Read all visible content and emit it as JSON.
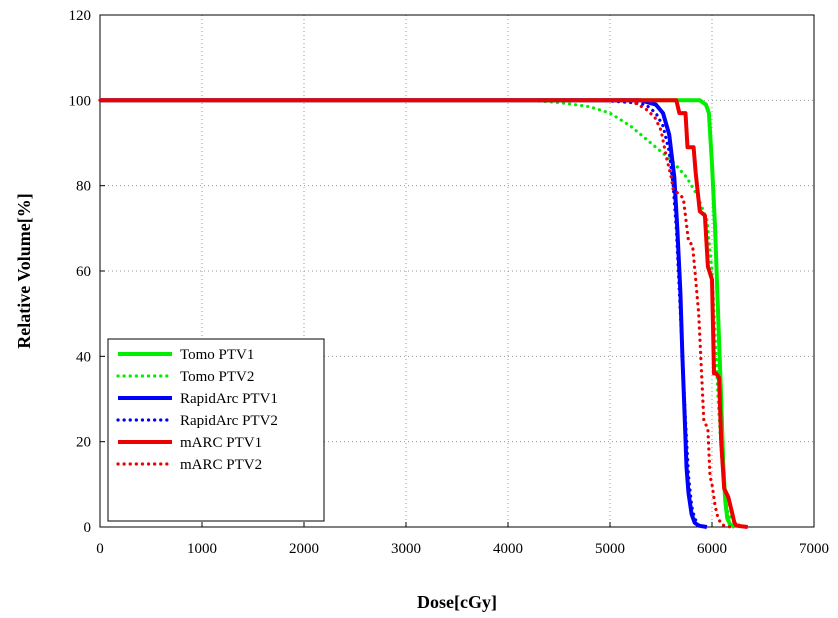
{
  "chart_data": {
    "type": "line",
    "xlabel": "Dose[cGy]",
    "ylabel": "Relative Volume[%]",
    "xlim": [
      0,
      7000
    ],
    "ylim": [
      0,
      120
    ],
    "x_ticks": [
      "0",
      "1000",
      "2000",
      "3000",
      "4000",
      "5000",
      "6000",
      "7000"
    ],
    "y_ticks": [
      "0",
      "20",
      "40",
      "60",
      "80",
      "100",
      "120"
    ],
    "grid": "dotted, both axes",
    "legend_position": "lower-left",
    "series": [
      {
        "name": "Tomo PTV1",
        "color": "#00ee00",
        "style": "solid",
        "points": [
          [
            0,
            100
          ],
          [
            5700,
            100
          ],
          [
            5880,
            100
          ],
          [
            5940,
            99
          ],
          [
            5970,
            97
          ],
          [
            6000,
            85
          ],
          [
            6030,
            70
          ],
          [
            6060,
            50
          ],
          [
            6090,
            30
          ],
          [
            6110,
            15
          ],
          [
            6130,
            6
          ],
          [
            6150,
            2
          ],
          [
            6180,
            0.5
          ],
          [
            6220,
            0
          ]
        ]
      },
      {
        "name": "Tomo PTV2",
        "color": "#00ee00",
        "style": "dotted",
        "points": [
          [
            0,
            100
          ],
          [
            4200,
            100
          ],
          [
            4500,
            99.5
          ],
          [
            4800,
            98.5
          ],
          [
            5000,
            97
          ],
          [
            5200,
            94
          ],
          [
            5400,
            90
          ],
          [
            5600,
            86
          ],
          [
            5750,
            82
          ],
          [
            5850,
            78
          ],
          [
            5950,
            72
          ],
          [
            6000,
            60
          ],
          [
            6030,
            45
          ],
          [
            6060,
            30
          ],
          [
            6090,
            18
          ],
          [
            6120,
            8
          ],
          [
            6160,
            3
          ],
          [
            6220,
            1
          ],
          [
            6300,
            0
          ]
        ]
      },
      {
        "name": "RapidArc PTV1",
        "color": "#0000ff",
        "style": "solid",
        "points": [
          [
            0,
            100
          ],
          [
            5300,
            100
          ],
          [
            5450,
            99
          ],
          [
            5520,
            97
          ],
          [
            5580,
            92
          ],
          [
            5630,
            82
          ],
          [
            5660,
            70
          ],
          [
            5690,
            55
          ],
          [
            5710,
            40
          ],
          [
            5730,
            27
          ],
          [
            5750,
            14
          ],
          [
            5770,
            8
          ],
          [
            5800,
            3
          ],
          [
            5830,
            1
          ],
          [
            5870,
            0.3
          ],
          [
            5950,
            0
          ]
        ]
      },
      {
        "name": "RapidArc PTV2",
        "color": "#0000ff",
        "style": "dotted",
        "points": [
          [
            0,
            100
          ],
          [
            4900,
            100
          ],
          [
            5200,
            99.5
          ],
          [
            5350,
            99
          ],
          [
            5450,
            97
          ],
          [
            5520,
            94
          ],
          [
            5580,
            88
          ],
          [
            5620,
            80
          ],
          [
            5650,
            70
          ],
          [
            5680,
            55
          ],
          [
            5710,
            40
          ],
          [
            5740,
            25
          ],
          [
            5770,
            12
          ],
          [
            5800,
            5
          ],
          [
            5830,
            2
          ],
          [
            5870,
            0.5
          ],
          [
            5900,
            0
          ]
        ]
      },
      {
        "name": "mARC PTV1",
        "color": "#ee0000",
        "style": "solid",
        "points": [
          [
            0,
            100
          ],
          [
            5600,
            100
          ],
          [
            5650,
            100
          ],
          [
            5680,
            97
          ],
          [
            5740,
            97
          ],
          [
            5760,
            89
          ],
          [
            5820,
            89
          ],
          [
            5840,
            83
          ],
          [
            5880,
            74
          ],
          [
            5930,
            73
          ],
          [
            5960,
            61
          ],
          [
            6000,
            58
          ],
          [
            6020,
            36
          ],
          [
            6040,
            36
          ],
          [
            6070,
            35
          ],
          [
            6090,
            20
          ],
          [
            6120,
            9
          ],
          [
            6160,
            7
          ],
          [
            6190,
            4
          ],
          [
            6220,
            1
          ],
          [
            6240,
            0.3
          ],
          [
            6350,
            0
          ]
        ]
      },
      {
        "name": "mARC PTV2",
        "color": "#ee0000",
        "style": "dotted",
        "points": [
          [
            0,
            100
          ],
          [
            5200,
            100
          ],
          [
            5350,
            98
          ],
          [
            5440,
            96
          ],
          [
            5500,
            93
          ],
          [
            5550,
            87
          ],
          [
            5600,
            82
          ],
          [
            5620,
            79
          ],
          [
            5680,
            78
          ],
          [
            5720,
            77
          ],
          [
            5770,
            67
          ],
          [
            5810,
            66
          ],
          [
            5840,
            58
          ],
          [
            5870,
            50
          ],
          [
            5900,
            35
          ],
          [
            5920,
            25
          ],
          [
            5960,
            23
          ],
          [
            5980,
            12
          ],
          [
            6000,
            10
          ],
          [
            6030,
            5
          ],
          [
            6060,
            2
          ],
          [
            6100,
            0.5
          ],
          [
            6180,
            0
          ]
        ]
      }
    ]
  }
}
